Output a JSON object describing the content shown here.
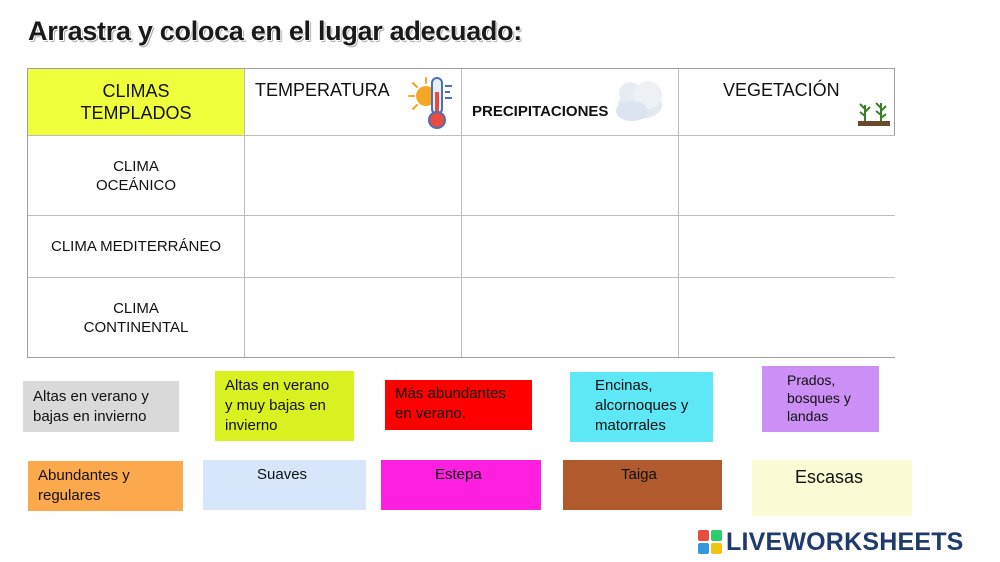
{
  "title": "Arrastra y coloca en el lugar adecuado:",
  "table": {
    "corner_line1": "CLIMAS",
    "corner_line2": "TEMPLADOS",
    "col_temperatura": "TEMPERATURA",
    "col_precipitaciones": "PRECIPITACIONES",
    "col_vegetacion": "VEGETACIÓN",
    "row_oceanico_line1": "CLIMA",
    "row_oceanico_line2": "OCEÁNICO",
    "row_mediterraneo": "CLIMA MEDITERRÁNEO",
    "row_continental_line1": "CLIMA",
    "row_continental_line2": "CONTINENTAL"
  },
  "cards": [
    {
      "line1": "Altas en verano y",
      "line2": "bajas en invierno",
      "line3": "",
      "color": "#d9d9d9"
    },
    {
      "line1": "Altas en verano",
      "line2": "y muy bajas en",
      "line3": "invierno",
      "color": "#d9f021"
    },
    {
      "line1": "Más abundantes",
      "line2": "en verano.",
      "line3": "",
      "color": "#ff0000"
    },
    {
      "line1": "Encinas,",
      "line2": "alcornoques y",
      "line3": "matorrales",
      "color": "#5ee7f5"
    },
    {
      "line1": "Prados,",
      "line2": "bosques y",
      "line3": "landas",
      "color": "#cc8ff5"
    },
    {
      "line1": "Abundantes y",
      "line2": "regulares",
      "line3": "",
      "color": "#fca94d"
    },
    {
      "line1": "Suaves",
      "line2": "",
      "line3": "",
      "color": "#d7e6fa"
    },
    {
      "line1": "Estepa",
      "line2": "",
      "line3": "",
      "color": "#ff1fe0"
    },
    {
      "line1": "Taiga",
      "line2": "",
      "line3": "",
      "color": "#b05a2d"
    },
    {
      "line1": "Escasas",
      "line2": "",
      "line3": "",
      "color": "#fbfbd6"
    }
  ],
  "corner_color": "#f0ff3c",
  "logo": {
    "text": "LIVEWORKSHEETS",
    "badge": "LIVE"
  },
  "icons": {
    "temperatura": "thermometer-sun-icon",
    "precipitaciones": "cloud-icon",
    "vegetacion": "plants-icon"
  }
}
